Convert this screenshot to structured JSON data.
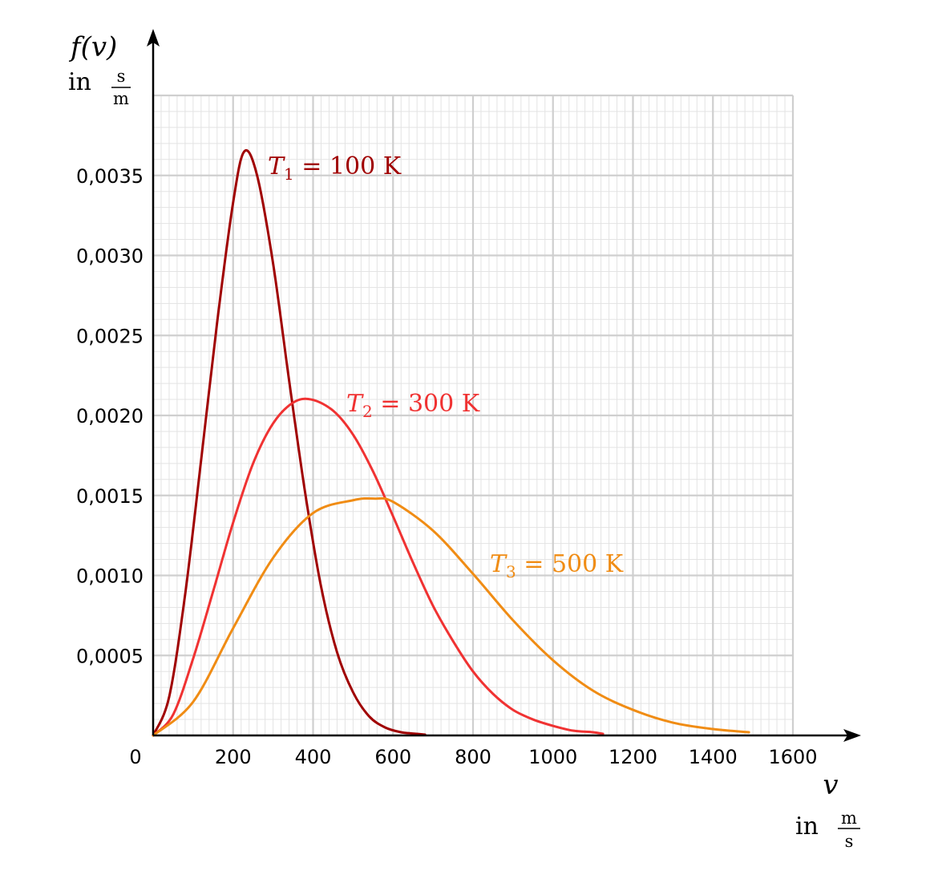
{
  "chart_data": {
    "type": "line",
    "title": "",
    "ylabel": {
      "symbol": "f(v)",
      "unit_prefix": "in",
      "unit_num": "s",
      "unit_den": "m"
    },
    "xlabel": {
      "symbol": "v",
      "unit_prefix": "in",
      "unit_num": "m",
      "unit_den": "s"
    },
    "xlim": [
      0,
      1600
    ],
    "ylim": [
      0,
      0.004
    ],
    "x_ticks": [
      "0",
      "200",
      "400",
      "600",
      "800",
      "1000",
      "1200",
      "1400",
      "1600"
    ],
    "x_tick_values": [
      0,
      200,
      400,
      600,
      800,
      1000,
      1200,
      1400,
      1600
    ],
    "y_ticks": [
      "0,0005",
      "0,0010",
      "0,0015",
      "0,0020",
      "0,0025",
      "0,0030",
      "0,0035"
    ],
    "y_tick_values": [
      0.0005,
      0.001,
      0.0015,
      0.002,
      0.0025,
      0.003,
      0.0035
    ],
    "grid": true,
    "series": [
      {
        "name": "T1 = 100 K",
        "label_var": "T",
        "label_sub": "1",
        "label_rest": " = 100 K",
        "color": "#a00000",
        "x": [
          0,
          40,
          80,
          120,
          160,
          200,
          228,
          260,
          300,
          340,
          380,
          420,
          460,
          500,
          540,
          580,
          620,
          660,
          680
        ],
        "y": [
          0,
          0.00024,
          0.00088,
          0.00172,
          0.00258,
          0.00333,
          0.00365,
          0.0035,
          0.00295,
          0.00222,
          0.00152,
          0.00093,
          0.00052,
          0.00027,
          0.00012,
          5e-05,
          2e-05,
          1e-05,
          5e-06
        ]
      },
      {
        "name": "T2 = 300 K",
        "label_var": "T",
        "label_sub": "2",
        "label_rest": " = 300 K",
        "color": "#f03232",
        "x": [
          0,
          50,
          100,
          150,
          200,
          250,
          300,
          350,
          395,
          450,
          500,
          550,
          600,
          650,
          700,
          750,
          800,
          850,
          900,
          950,
          1000,
          1050,
          1100,
          1125
        ],
        "y": [
          0,
          0.00013,
          0.00048,
          0.0009,
          0.00133,
          0.0017,
          0.00195,
          0.00208,
          0.0021,
          0.00203,
          0.00188,
          0.00165,
          0.00137,
          0.00108,
          0.00081,
          0.00059,
          0.0004,
          0.00026,
          0.00016,
          0.0001,
          6e-05,
          3e-05,
          2e-05,
          1e-05
        ]
      },
      {
        "name": "T3 = 500 K",
        "label_var": "T",
        "label_sub": "3",
        "label_rest": " = 500 K",
        "color": "#f08c14",
        "x": [
          0,
          100,
          200,
          300,
          400,
          500,
          555,
          600,
          700,
          800,
          900,
          1000,
          1100,
          1200,
          1300,
          1400,
          1490
        ],
        "y": [
          0,
          0.00021,
          0.00067,
          0.00111,
          0.00139,
          0.00147,
          0.00148,
          0.00146,
          0.00128,
          0.00101,
          0.00072,
          0.00047,
          0.00028,
          0.00016,
          8e-05,
          4e-05,
          2e-05
        ]
      }
    ]
  }
}
